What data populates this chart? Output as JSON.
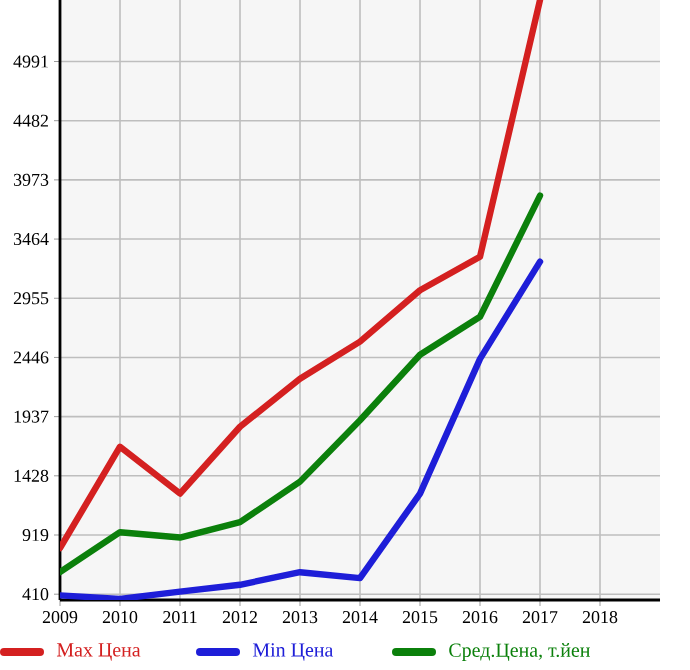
{
  "chart_data": {
    "type": "line",
    "x": [
      2009,
      2010,
      2011,
      2012,
      2013,
      2014,
      2015,
      2016,
      2017
    ],
    "series": [
      {
        "name": "Max Цена",
        "color": "#d42020",
        "values": [
          806,
          1678,
          1275,
          1850,
          2262,
          2582,
          3024,
          3312,
          5520
        ]
      },
      {
        "name": "Min Цена",
        "color": "#1e1ed8",
        "values": [
          400,
          370,
          432,
          491,
          599,
          548,
          1275,
          2434,
          3270
        ]
      },
      {
        "name": "Сред.Цена, т.йен",
        "color": "#0b800b",
        "values": [
          599,
          943,
          897,
          1029,
          1378,
          1906,
          2469,
          2796,
          3838
        ]
      }
    ],
    "xlim": [
      2009,
      2019
    ],
    "ylim": [
      360,
      5520
    ],
    "xticks": [
      2009,
      2010,
      2011,
      2012,
      2013,
      2014,
      2015,
      2016,
      2017,
      2018
    ],
    "yticks": [
      410,
      919,
      1428,
      1937,
      2446,
      2955,
      3464,
      3973,
      4482,
      4991
    ],
    "grid": true,
    "legend": "bottom",
    "marker": "none",
    "line_style": "solid"
  }
}
